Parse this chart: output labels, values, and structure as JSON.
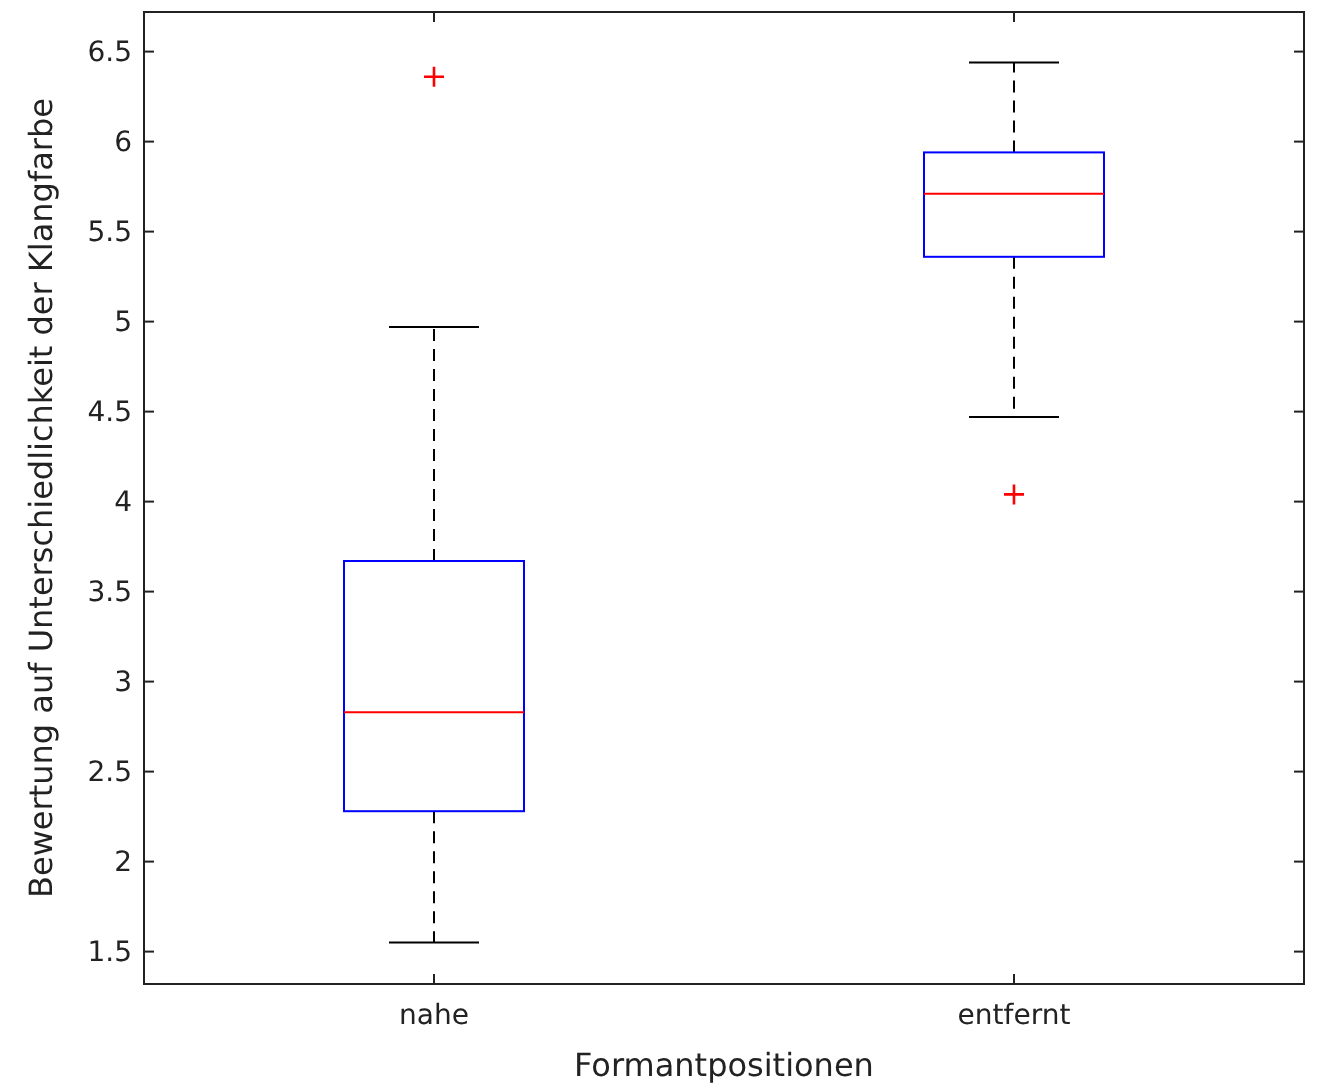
{
  "chart_data": {
    "type": "box",
    "xlabel": "Formantpositionen",
    "ylabel": "Bewertung auf Unterschiedlichkeit der Klangfarbe",
    "categories": [
      "nahe",
      "entfernt"
    ],
    "series": [
      {
        "color": "#0000ff",
        "boxes": [
          {
            "low": 1.55,
            "q1": 2.28,
            "median": 2.83,
            "q3": 3.67,
            "high": 4.97,
            "outliers": [
              6.36
            ]
          },
          {
            "low": 4.47,
            "q1": 5.36,
            "median": 5.71,
            "q3": 5.94,
            "high": 6.44,
            "outliers": [
              4.04
            ]
          }
        ]
      }
    ],
    "ylim": [
      1.32,
      6.72
    ],
    "yticks": [
      1.5,
      2,
      2.5,
      3,
      3.5,
      4,
      4.5,
      5,
      5.5,
      6,
      6.5
    ],
    "grid": false
  }
}
